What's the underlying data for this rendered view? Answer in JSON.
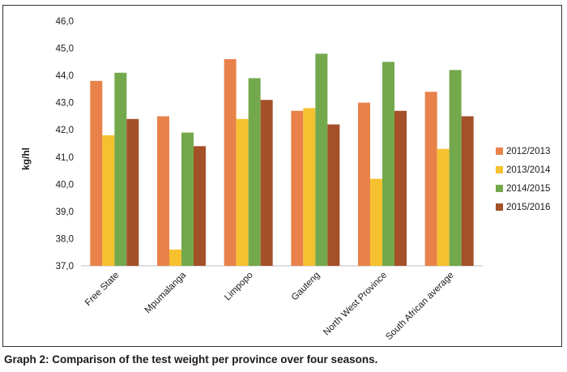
{
  "caption": "Graph 2: Comparison of the test weight per province over four seasons.",
  "chart_data": {
    "type": "bar",
    "title": "",
    "xlabel": "",
    "ylabel": "kg/hl",
    "ylim": [
      37.0,
      46.0
    ],
    "y_ticks": [
      "37,0",
      "38,0",
      "39,0",
      "40,0",
      "41,0",
      "42,0",
      "43,0",
      "44,0",
      "45,0",
      "46,0"
    ],
    "grid": false,
    "legend_position": "right",
    "categories": [
      "Free State",
      "Mpumalanga",
      "Limpopo",
      "Gauteng",
      "North West Province",
      "South African average"
    ],
    "series": [
      {
        "name": "2012/2013",
        "color": "#E8824A",
        "values": [
          43.8,
          42.5,
          44.6,
          42.7,
          43.0,
          43.4
        ]
      },
      {
        "name": "2013/2014",
        "color": "#F6C12F",
        "values": [
          41.8,
          37.6,
          42.4,
          42.8,
          40.2,
          41.3
        ]
      },
      {
        "name": "2014/2015",
        "color": "#74A84C",
        "values": [
          44.1,
          41.9,
          43.9,
          44.8,
          44.5,
          44.2
        ]
      },
      {
        "name": "2015/2016",
        "color": "#A45028",
        "values": [
          42.4,
          41.4,
          43.1,
          42.2,
          42.7,
          42.5
        ]
      }
    ]
  }
}
